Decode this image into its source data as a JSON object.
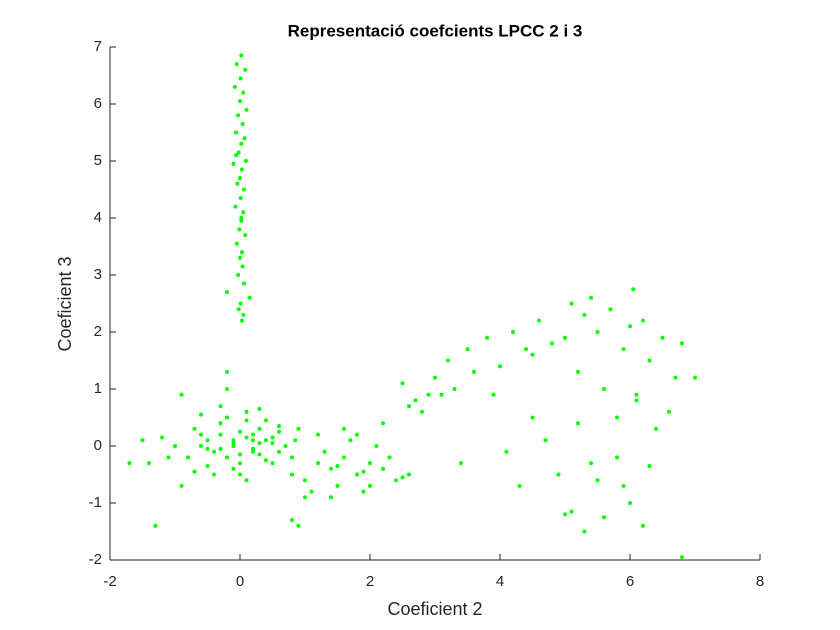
{
  "chart_data": {
    "type": "scatter",
    "title": "Representació coefcients LPCC 2 i 3",
    "xlabel": "Coeficient 2",
    "ylabel": "Coeficient 3",
    "color": "#00ff00",
    "xlim": [
      -2,
      8
    ],
    "ylim": [
      -2,
      7
    ],
    "xticks": [
      -2,
      0,
      2,
      4,
      6,
      8
    ],
    "yticks": [
      -2,
      -1,
      0,
      1,
      2,
      3,
      4,
      5,
      6,
      7
    ],
    "x": [
      0.02,
      -0.05,
      0.08,
      0.01,
      -0.08,
      0.05,
      0.0,
      0.1,
      -0.03,
      0.04,
      -0.06,
      0.07,
      0.02,
      -0.02,
      0.09,
      -0.1,
      0.03,
      0.0,
      -0.04,
      0.06,
      0.01,
      -0.07,
      0.05,
      0.02,
      -0.01,
      0.08,
      -0.05,
      0.03,
      0.0,
      0.04,
      -0.03,
      0.06,
      -0.2,
      0.15,
      0.01,
      -0.02,
      0.05,
      0.03,
      -0.06,
      0.02,
      -0.5,
      -0.3,
      -0.1,
      0.1,
      0.3,
      0.5,
      -0.4,
      -0.2,
      0.0,
      0.2,
      0.4,
      0.6,
      -0.6,
      -0.3,
      0.0,
      0.3,
      0.6,
      -0.5,
      -0.2,
      0.1,
      0.4,
      -0.1,
      0.2,
      -0.7,
      0.7,
      -0.8,
      -1.0,
      -1.2,
      -1.4,
      -1.7,
      -1.3,
      -0.9,
      0.8,
      0.9,
      -0.3,
      0.1,
      -0.2,
      0.3,
      0.0,
      -0.4,
      0.5,
      -0.6,
      0.2,
      -0.1,
      0.4,
      -0.9,
      -1.1,
      -1.5,
      -0.7,
      0.6,
      -0.2,
      0.1,
      -0.5,
      0.0,
      0.3,
      -0.3,
      -0.1,
      0.2,
      -0.6,
      0.5,
      0.8,
      1.0,
      1.2,
      1.4,
      1.6,
      1.8,
      2.0,
      2.2,
      2.4,
      2.5,
      1.1,
      1.3,
      1.5,
      1.7,
      1.9,
      2.1,
      2.3,
      0.9,
      1.0,
      1.6,
      1.8,
      2.0,
      2.2,
      1.4,
      1.2,
      0.8,
      1.9,
      2.6,
      1.5,
      0.85,
      2.5,
      2.6,
      2.7,
      2.8,
      2.9,
      3.0,
      3.1,
      3.2,
      3.3,
      3.5,
      3.6,
      3.8,
      4.0,
      4.2,
      4.4,
      4.5,
      4.6,
      4.8,
      5.0,
      5.1,
      5.2,
      5.3,
      5.4,
      5.5,
      5.6,
      5.7,
      5.8,
      5.9,
      6.0,
      6.1,
      6.2,
      6.3,
      6.4,
      6.5,
      6.6,
      6.7,
      6.8,
      7.0,
      4.3,
      4.7,
      4.9,
      5.0,
      5.2,
      5.4,
      5.5,
      5.6,
      5.8,
      6.0,
      6.1,
      6.3,
      6.2,
      5.3,
      4.1,
      4.5,
      3.9,
      3.4,
      5.9,
      6.8,
      6.05,
      5.1
    ],
    "y": [
      6.85,
      6.7,
      6.6,
      6.45,
      6.3,
      6.2,
      6.05,
      5.9,
      5.8,
      5.65,
      5.5,
      5.4,
      5.3,
      5.15,
      5.0,
      4.95,
      4.85,
      4.7,
      4.6,
      4.5,
      4.35,
      4.2,
      4.1,
      3.95,
      3.8,
      3.7,
      3.55,
      3.4,
      3.3,
      3.15,
      3.0,
      2.85,
      2.7,
      2.6,
      2.5,
      2.4,
      2.3,
      2.2,
      5.1,
      4.0,
      0.1,
      0.2,
      0.0,
      0.15,
      0.3,
      0.05,
      -0.1,
      -0.2,
      0.25,
      -0.05,
      0.1,
      0.35,
      0.0,
      0.4,
      -0.3,
      -0.15,
      -0.1,
      -0.35,
      0.5,
      0.45,
      0.45,
      -0.4,
      0.2,
      0.3,
      0.0,
      -0.2,
      0.0,
      0.15,
      -0.3,
      -0.3,
      -1.4,
      0.9,
      -0.2,
      0.3,
      0.7,
      0.6,
      1.0,
      0.65,
      -0.5,
      -0.5,
      -0.3,
      0.55,
      0.1,
      0.05,
      -0.25,
      -0.7,
      -0.2,
      0.1,
      -0.45,
      0.25,
      1.3,
      -0.6,
      -0.05,
      -0.15,
      0.05,
      -0.05,
      0.1,
      -0.1,
      0.2,
      0.15,
      -0.5,
      -0.6,
      -0.3,
      -0.4,
      -0.2,
      -0.5,
      -0.3,
      -0.4,
      -0.6,
      -0.55,
      -0.8,
      -0.1,
      -0.7,
      0.1,
      -0.8,
      0.0,
      -0.2,
      -1.4,
      -0.9,
      0.3,
      0.2,
      -0.7,
      0.4,
      -0.9,
      0.2,
      -1.3,
      -0.45,
      -0.5,
      -0.35,
      0.1,
      1.1,
      0.7,
      0.8,
      0.6,
      0.9,
      1.2,
      0.9,
      1.5,
      1.0,
      1.7,
      1.3,
      1.9,
      1.4,
      2.0,
      1.7,
      1.6,
      2.2,
      1.8,
      1.9,
      2.5,
      1.3,
      2.3,
      2.6,
      2.0,
      1.0,
      2.4,
      0.5,
      1.7,
      2.1,
      0.8,
      2.2,
      1.5,
      0.3,
      1.9,
      0.6,
      1.2,
      1.8,
      1.2,
      -0.7,
      0.1,
      -0.5,
      -1.2,
      0.4,
      -0.3,
      -0.6,
      -1.25,
      -0.2,
      -1.0,
      0.9,
      -0.35,
      -1.4,
      -1.5,
      -0.1,
      0.5,
      0.9,
      -0.3,
      -0.7,
      -1.95,
      2.75,
      -1.15
    ]
  }
}
